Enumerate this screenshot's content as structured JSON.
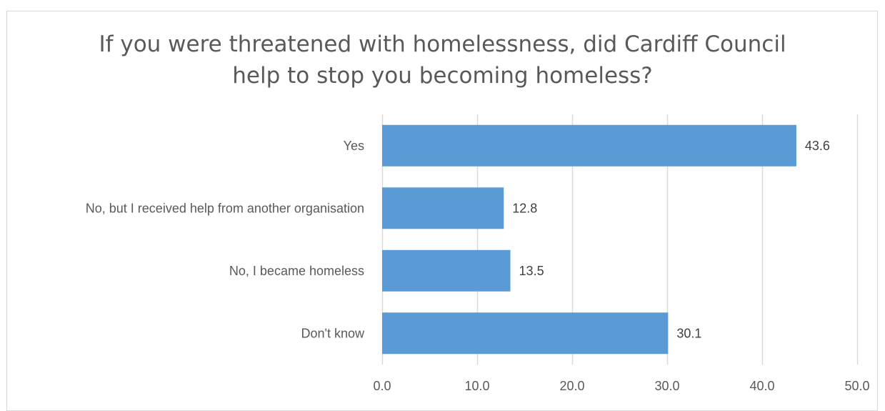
{
  "chart_data": {
    "type": "bar",
    "orientation": "horizontal",
    "title_lines": [
      "If you were threatened with homelessness, did Cardiff Council",
      "help to stop you becoming homeless?"
    ],
    "categories": [
      "Yes",
      "No, but I received help from another organisation",
      "No, I became homeless",
      "Don't know"
    ],
    "values": [
      43.6,
      12.8,
      13.5,
      30.1
    ],
    "value_labels": [
      "43.6",
      "12.8",
      "13.5",
      "30.1"
    ],
    "xlim": [
      0,
      50
    ],
    "x_ticks": [
      "0.0",
      "10.0",
      "20.0",
      "30.0",
      "40.0",
      "50.0"
    ],
    "grid": true,
    "legend": "none",
    "bar_color": "#5b9bd5",
    "grid_color": "#d9d9d9",
    "text_color": "#595959"
  }
}
